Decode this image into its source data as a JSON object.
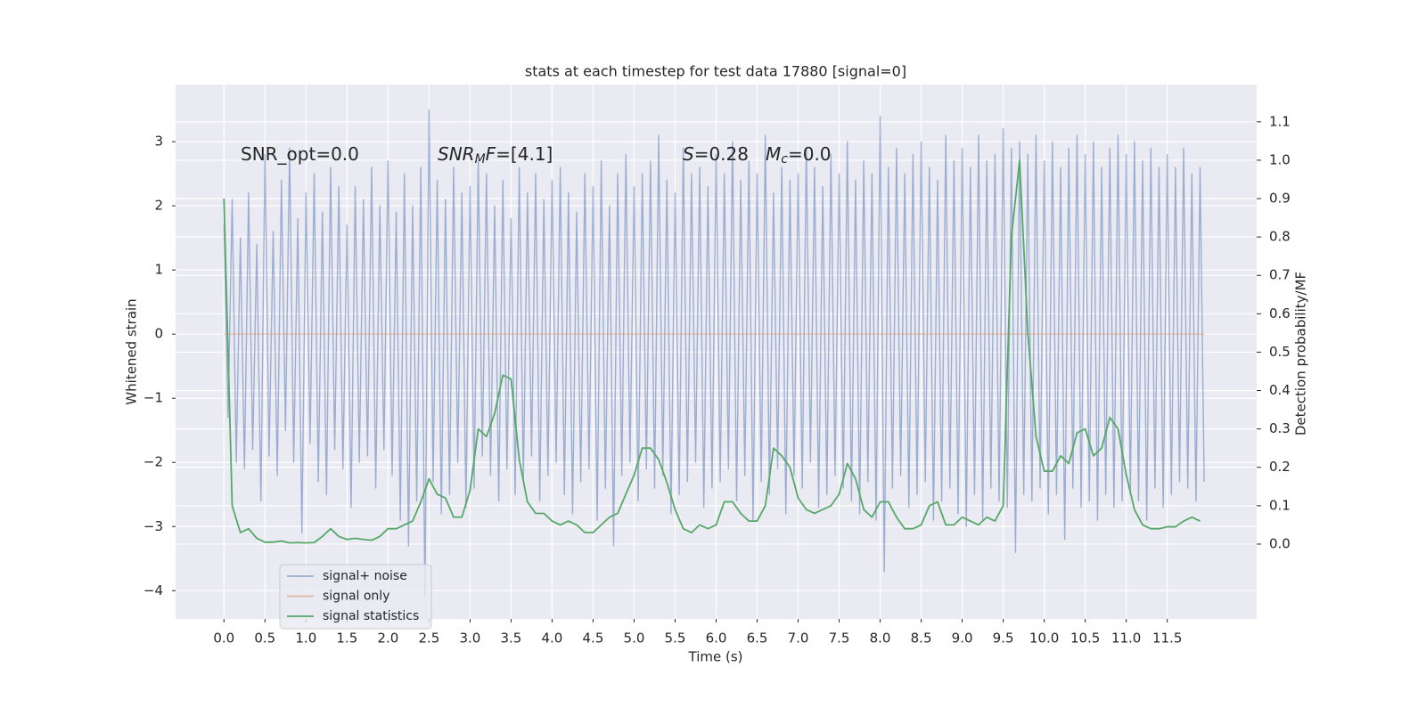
{
  "chart_data": {
    "type": "line",
    "title": "stats at each timestep for test data 17880 [signal=0]",
    "xlabel": "Time (s)",
    "ylabel": "Whitened strain",
    "y2label": "Detection probability/MF",
    "xlim": [
      -0.59,
      12.59
    ],
    "ylim": [
      -4.44,
      3.89
    ],
    "y2lim": [
      -0.195,
      1.197
    ],
    "xticks": [
      {
        "value": 0,
        "label": "0.0"
      },
      0.5,
      {
        "value": 1,
        "label": "1.0"
      },
      1.5,
      {
        "value": 2,
        "label": "2.0"
      },
      2.5,
      {
        "value": 3,
        "label": "3.0"
      },
      3.5,
      {
        "value": 4,
        "label": "4.0"
      },
      4.5,
      {
        "value": 5,
        "label": "5.0"
      },
      5.5,
      {
        "value": 6,
        "label": "6.0"
      },
      6.5,
      {
        "value": 7,
        "label": "7.0"
      },
      7.5,
      {
        "value": 8,
        "label": "8.0"
      },
      8.5,
      {
        "value": 9,
        "label": "9.0"
      },
      9.5,
      {
        "value": 10,
        "label": "10.0"
      },
      10.5,
      {
        "value": 11,
        "label": "11.0"
      },
      11.5
    ],
    "yticks": [
      {
        "value": -4,
        "label": "−4"
      },
      {
        "value": -3,
        "label": "−3"
      },
      {
        "value": -2,
        "label": "−2"
      },
      {
        "value": -1,
        "label": "−1"
      },
      0,
      1,
      2,
      3
    ],
    "y2ticks": [
      {
        "value": 0,
        "label": "0.0"
      },
      0.1,
      0.2,
      0.3,
      0.4,
      0.5,
      0.6,
      0.7,
      0.8,
      0.9,
      {
        "value": 1,
        "label": "1.0"
      },
      1.1
    ],
    "grid": true,
    "legend": "lower left",
    "annotations": [
      [
        {
          "text": "SNR_opt=0.0"
        }
      ],
      [
        {
          "text": "SNR",
          "italic": true
        },
        {
          "text": "M",
          "italic": true,
          "sub": true
        },
        {
          "text": "F",
          "italic": true
        },
        {
          "text": "=[4.1]"
        }
      ],
      [
        {
          "text": "S",
          "italic": true
        },
        {
          "text": "=0.28"
        }
      ],
      [
        {
          "text": "M",
          "italic": true
        },
        {
          "text": "c",
          "italic": true,
          "sub": true
        },
        {
          "text": "=0.0"
        }
      ]
    ],
    "series": [
      {
        "name": "signal+ noise",
        "color": "#4c72b0",
        "opacity": 0.5,
        "x": [
          0,
          0.05,
          0.1,
          0.15,
          0.2,
          0.25,
          0.3,
          0.35,
          0.4,
          0.45,
          0.5,
          0.55,
          0.6,
          0.65,
          0.7,
          0.75,
          0.8,
          0.85,
          0.9,
          0.95,
          1,
          1.05,
          1.1,
          1.15,
          1.2,
          1.25,
          1.3,
          1.35,
          1.4,
          1.45,
          1.5,
          1.55,
          1.6,
          1.65,
          1.7,
          1.75,
          1.8,
          1.85,
          1.9,
          1.95,
          2,
          2.05,
          2.1,
          2.15,
          2.2,
          2.25,
          2.3,
          2.35,
          2.4,
          2.45,
          2.5,
          2.55,
          2.6,
          2.65,
          2.7,
          2.75,
          2.8,
          2.85,
          2.9,
          2.95,
          3,
          3.05,
          3.1,
          3.15,
          3.2,
          3.25,
          3.3,
          3.35,
          3.4,
          3.45,
          3.5,
          3.55,
          3.6,
          3.65,
          3.7,
          3.75,
          3.8,
          3.85,
          3.9,
          3.95,
          4,
          4.05,
          4.1,
          4.15,
          4.2,
          4.25,
          4.3,
          4.35,
          4.4,
          4.45,
          4.5,
          4.55,
          4.6,
          4.65,
          4.7,
          4.75,
          4.8,
          4.85,
          4.9,
          4.95,
          5,
          5.05,
          5.1,
          5.15,
          5.2,
          5.25,
          5.3,
          5.35,
          5.4,
          5.45,
          5.5,
          5.55,
          5.6,
          5.65,
          5.7,
          5.75,
          5.8,
          5.85,
          5.9,
          5.95,
          6,
          6.05,
          6.1,
          6.15,
          6.2,
          6.25,
          6.3,
          6.35,
          6.4,
          6.45,
          6.5,
          6.55,
          6.6,
          6.65,
          6.7,
          6.75,
          6.8,
          6.85,
          6.9,
          6.95,
          7,
          7.05,
          7.1,
          7.15,
          7.2,
          7.25,
          7.3,
          7.35,
          7.4,
          7.45,
          7.5,
          7.55,
          7.6,
          7.65,
          7.7,
          7.75,
          7.8,
          7.85,
          7.9,
          7.95,
          8,
          8.05,
          8.1,
          8.15,
          8.2,
          8.25,
          8.3,
          8.35,
          8.4,
          8.45,
          8.5,
          8.55,
          8.6,
          8.65,
          8.7,
          8.75,
          8.8,
          8.85,
          8.9,
          8.95,
          9,
          9.05,
          9.1,
          9.15,
          9.2,
          9.25,
          9.3,
          9.35,
          9.4,
          9.45,
          9.5,
          9.55,
          9.6,
          9.65,
          9.7,
          9.75,
          9.8,
          9.85,
          9.9,
          9.95,
          10,
          10.05,
          10.1,
          10.15,
          10.2,
          10.25,
          10.3,
          10.35,
          10.4,
          10.45,
          10.5,
          10.55,
          10.6,
          10.65,
          10.7,
          10.75,
          10.8,
          10.85,
          10.9,
          10.95,
          11,
          11.05,
          11.1,
          11.15,
          11.2,
          11.25,
          11.3,
          11.35,
          11.4,
          11.45,
          11.5,
          11.55,
          11.6,
          11.65,
          11.7,
          11.75,
          11.8,
          11.85,
          11.9,
          11.95
        ],
        "values": [
          1.7,
          -1.3,
          2.1,
          -2.0,
          1.5,
          -2.1,
          2.2,
          -1.8,
          1.4,
          -2.6,
          2.8,
          -1.9,
          1.6,
          -2.2,
          2.4,
          -1.5,
          2.9,
          -2.0,
          1.8,
          -3.1,
          2.2,
          -1.7,
          2.5,
          -2.3,
          1.9,
          -2.5,
          2.6,
          -1.8,
          2.3,
          -2.1,
          1.7,
          -2.7,
          2.3,
          -2.0,
          2.1,
          -1.9,
          2.6,
          -2.4,
          2.0,
          -1.8,
          2.7,
          -2.2,
          1.9,
          -2.9,
          2.5,
          -3.3,
          2.0,
          -2.6,
          2.6,
          -4.1,
          3.5,
          -2.3,
          2.4,
          -2.8,
          2.1,
          -2.5,
          2.6,
          -2.0,
          2.2,
          -2.7,
          2.3,
          -2.4,
          2.7,
          -1.9,
          2.5,
          -2.2,
          2.0,
          -2.6,
          2.4,
          -2.1,
          1.8,
          -2.5,
          2.6,
          -2.3,
          2.2,
          -1.9,
          2.5,
          -2.6,
          2.1,
          -2.2,
          2.4,
          -2.0,
          2.6,
          -2.5,
          2.2,
          -2.8,
          1.9,
          -2.3,
          2.5,
          -2.1,
          2.3,
          -2.9,
          2.7,
          -2.4,
          2.0,
          -3.3,
          2.5,
          -2.2,
          2.8,
          -2.0,
          2.3,
          -2.6,
          2.5,
          -2.1,
          2.7,
          -2.4,
          3.1,
          -2.2,
          2.4,
          -2.8,
          2.2,
          -2.5,
          2.9,
          -2.3,
          2.5,
          -2.0,
          2.6,
          -2.7,
          2.3,
          -2.4,
          2.8,
          -2.3,
          2.5,
          -2.1,
          3.0,
          -2.6,
          2.4,
          -2.2,
          2.7,
          -2.9,
          2.5,
          -2.3,
          3.1,
          -2.5,
          2.2,
          -2.1,
          2.6,
          -2.8,
          2.4,
          -2.2,
          2.5,
          -2.4,
          2.9,
          -2.0,
          2.6,
          -2.7,
          2.3,
          -2.5,
          2.8,
          -2.2,
          2.5,
          -2.4,
          3.0,
          -2.6,
          2.4,
          -2.8,
          2.7,
          -2.3,
          2.5,
          -2.9,
          3.4,
          -3.7,
          2.6,
          -2.4,
          2.9,
          -2.2,
          2.5,
          -2.7,
          2.8,
          -2.5,
          3.0,
          -2.3,
          2.6,
          -2.9,
          2.4,
          -2.6,
          3.1,
          -2.4,
          2.7,
          -2.8,
          2.9,
          -3.0,
          2.6,
          -2.5,
          3.1,
          -2.9,
          2.7,
          -2.4,
          2.8,
          -2.6,
          3.2,
          -2.7,
          2.9,
          -3.4,
          3.0,
          -2.5,
          2.8,
          -2.6,
          3.1,
          -2.4,
          2.7,
          -2.8,
          3.0,
          -2.5,
          2.6,
          -3.2,
          2.9,
          -2.4,
          3.1,
          -2.7,
          2.8,
          -2.6,
          3.0,
          -2.9,
          2.6,
          -2.5,
          2.9,
          -2.7,
          3.1,
          -2.6,
          2.8,
          -2.5,
          3.0,
          -2.6,
          2.7,
          -2.9,
          2.9,
          -2.4,
          2.6,
          -2.7,
          2.8,
          -2.5,
          2.6,
          -2.3,
          2.9,
          -2.4,
          2.5,
          -2.6,
          2.6,
          -2.3
        ]
      },
      {
        "name": "signal only",
        "color": "#dd8452",
        "opacity": 0.5,
        "x": [
          0,
          11.95
        ],
        "values": [
          0,
          0
        ]
      },
      {
        "name": "signal statistics",
        "color": "#55a868",
        "opacity": 1,
        "axis": "y2",
        "x": [
          0,
          0.1,
          0.2,
          0.3,
          0.4,
          0.5,
          0.6,
          0.7,
          0.8,
          0.9,
          1,
          1.1,
          1.2,
          1.3,
          1.4,
          1.5,
          1.6,
          1.7,
          1.8,
          1.9,
          2,
          2.1,
          2.2,
          2.3,
          2.4,
          2.5,
          2.6,
          2.7,
          2.8,
          2.9,
          3,
          3.1,
          3.2,
          3.3,
          3.4,
          3.5,
          3.6,
          3.7,
          3.8,
          3.9,
          4,
          4.1,
          4.2,
          4.3,
          4.4,
          4.5,
          4.6,
          4.7,
          4.8,
          4.9,
          5,
          5.1,
          5.2,
          5.3,
          5.4,
          5.5,
          5.6,
          5.7,
          5.8,
          5.9,
          6,
          6.1,
          6.2,
          6.3,
          6.4,
          6.5,
          6.6,
          6.7,
          6.8,
          6.9,
          7,
          7.1,
          7.2,
          7.3,
          7.4,
          7.5,
          7.6,
          7.7,
          7.8,
          7.9,
          8,
          8.1,
          8.2,
          8.3,
          8.4,
          8.5,
          8.6,
          8.7,
          8.8,
          8.9,
          9,
          9.1,
          9.2,
          9.3,
          9.4,
          9.5,
          9.6,
          9.7,
          9.8,
          9.9,
          10,
          10.1,
          10.2,
          10.3,
          10.4,
          10.5,
          10.6,
          10.7,
          10.8,
          10.9,
          11,
          11.1,
          11.2,
          11.3,
          11.4,
          11.5,
          11.6,
          11.7,
          11.8,
          11.9
        ],
        "values": [
          0.9,
          0.1,
          0.03,
          0.04,
          0.015,
          0.005,
          0.005,
          0.008,
          0.003,
          0.004,
          0.003,
          0.004,
          0.02,
          0.04,
          0.02,
          0.012,
          0.015,
          0.012,
          0.01,
          0.02,
          0.04,
          0.04,
          0.05,
          0.06,
          0.11,
          0.17,
          0.13,
          0.12,
          0.07,
          0.07,
          0.14,
          0.3,
          0.28,
          0.34,
          0.44,
          0.43,
          0.22,
          0.11,
          0.08,
          0.08,
          0.06,
          0.05,
          0.06,
          0.05,
          0.03,
          0.03,
          0.05,
          0.07,
          0.08,
          0.13,
          0.18,
          0.25,
          0.25,
          0.22,
          0.16,
          0.09,
          0.04,
          0.03,
          0.05,
          0.04,
          0.05,
          0.11,
          0.11,
          0.08,
          0.06,
          0.06,
          0.1,
          0.25,
          0.23,
          0.2,
          0.12,
          0.09,
          0.08,
          0.09,
          0.1,
          0.13,
          0.21,
          0.17,
          0.09,
          0.07,
          0.11,
          0.11,
          0.07,
          0.04,
          0.04,
          0.05,
          0.1,
          0.11,
          0.05,
          0.05,
          0.07,
          0.06,
          0.05,
          0.07,
          0.06,
          0.1,
          0.8,
          1.0,
          0.55,
          0.28,
          0.19,
          0.19,
          0.23,
          0.21,
          0.29,
          0.3,
          0.23,
          0.25,
          0.33,
          0.3,
          0.18,
          0.09,
          0.05,
          0.04,
          0.04,
          0.045,
          0.045,
          0.06,
          0.07,
          0.06
        ]
      }
    ]
  }
}
